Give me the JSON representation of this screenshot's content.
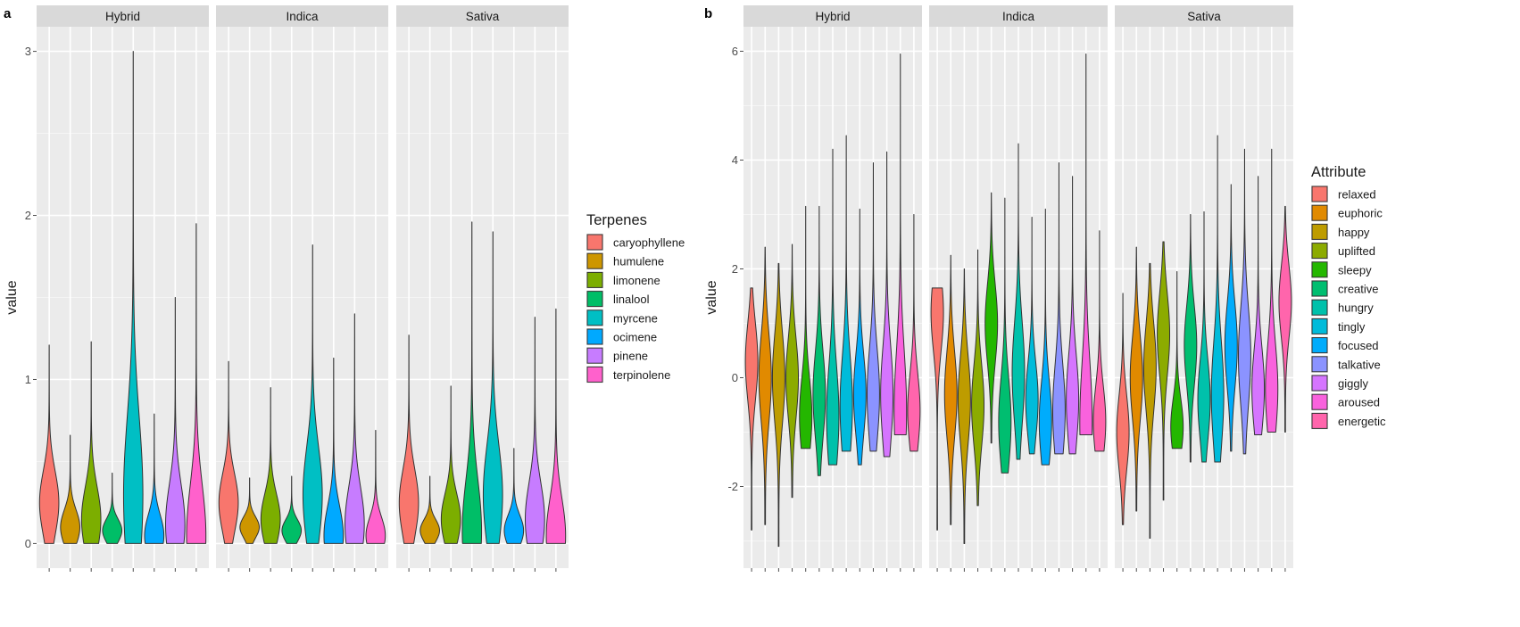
{
  "colors": {
    "panel_bg": "#ebebeb",
    "strip_bg": "#d9d9d9",
    "grid_major": "#ffffff",
    "grid_minor": "#f5f5f5",
    "outline": "#333333",
    "text": "#1a1a1a",
    "tick_text": "#4d4d4d"
  },
  "chart_data": [
    {
      "panel_label": "a",
      "type": "violin",
      "facets": [
        "Hybrid",
        "Indica",
        "Sativa"
      ],
      "ylabel": "value",
      "xlabel": "",
      "ylim": [
        -0.15,
        3.15
      ],
      "y_ticks": [
        0,
        1,
        2,
        3
      ],
      "grid": true,
      "legend_title": "Terpenes",
      "legend_position": "right",
      "categories": [
        "caryophyllene",
        "humulene",
        "limonene",
        "linalool",
        "myrcene",
        "ocimene",
        "pinene",
        "terpinolene"
      ],
      "colors": [
        "#F8766D",
        "#CD9600",
        "#7CAE00",
        "#00BE67",
        "#00BFC4",
        "#00A9FF",
        "#C77CFF",
        "#FF61CC"
      ],
      "series": [
        {
          "name": "Hybrid",
          "min": [
            0,
            0,
            0,
            0,
            0,
            0,
            0,
            0
          ],
          "max": [
            1.21,
            0.66,
            1.23,
            0.43,
            3.0,
            0.79,
            1.5,
            1.95
          ],
          "peak": [
            0.25,
            0.1,
            0.15,
            0.08,
            0.3,
            0.05,
            0.12,
            0.05
          ]
        },
        {
          "name": "Indica",
          "min": [
            0,
            0,
            0,
            0,
            0,
            0,
            0,
            0
          ],
          "max": [
            1.11,
            0.4,
            0.95,
            0.41,
            1.82,
            1.13,
            1.4,
            0.69
          ],
          "peak": [
            0.25,
            0.1,
            0.15,
            0.08,
            0.3,
            0.05,
            0.12,
            0.05
          ]
        },
        {
          "name": "Sativa",
          "min": [
            0,
            0,
            0,
            0,
            0,
            0,
            0,
            0
          ],
          "max": [
            1.27,
            0.41,
            0.96,
            1.96,
            1.9,
            0.58,
            1.38,
            1.43
          ],
          "peak": [
            0.25,
            0.08,
            0.15,
            0.08,
            0.3,
            0.08,
            0.15,
            0.05
          ]
        }
      ]
    },
    {
      "panel_label": "b",
      "type": "violin",
      "facets": [
        "Hybrid",
        "Indica",
        "Sativa"
      ],
      "ylabel": "value",
      "xlabel": "",
      "ylim": [
        -3.5,
        6.45
      ],
      "y_ticks": [
        -2,
        0,
        2,
        4,
        6
      ],
      "grid": true,
      "legend_title": "Attribute",
      "legend_position": "right",
      "categories": [
        "relaxed",
        "euphoric",
        "happy",
        "uplifted",
        "sleepy",
        "creative",
        "hungry",
        "tingly",
        "focused",
        "talkative",
        "giggly",
        "aroused",
        "energetic"
      ],
      "colors": [
        "#F8766D",
        "#E18A00",
        "#BE9C00",
        "#8CAB00",
        "#24B700",
        "#00BE70",
        "#00C1AB",
        "#00BBDA",
        "#00ACFC",
        "#8B93FF",
        "#D575FE",
        "#F962DD",
        "#FF65AC"
      ],
      "series": [
        {
          "name": "Hybrid",
          "min": [
            -2.8,
            -2.7,
            -3.1,
            -2.2,
            -1.3,
            -1.8,
            -1.6,
            -1.35,
            -1.6,
            -1.35,
            -1.45,
            -1.05,
            -1.35
          ],
          "max": [
            1.65,
            2.4,
            2.1,
            2.45,
            3.15,
            3.15,
            4.2,
            4.45,
            3.1,
            3.95,
            4.15,
            5.95,
            3.0
          ],
          "peak": [
            0.3,
            0.0,
            0.0,
            0.0,
            -0.7,
            -0.3,
            -0.7,
            -0.5,
            -0.3,
            -0.3,
            -0.3,
            -0.6,
            -0.6
          ]
        },
        {
          "name": "Indica",
          "min": [
            -2.8,
            -2.7,
            -3.05,
            -2.35,
            -1.2,
            -1.75,
            -1.5,
            -1.4,
            -1.6,
            -1.4,
            -1.4,
            -1.05,
            -1.35
          ],
          "max": [
            1.65,
            2.25,
            2.0,
            2.35,
            3.4,
            3.3,
            4.3,
            2.95,
            3.1,
            3.95,
            3.7,
            5.95,
            2.7
          ],
          "peak": [
            1.2,
            -0.3,
            -0.4,
            -0.5,
            1.0,
            -0.8,
            0.1,
            -0.4,
            -0.8,
            -0.6,
            -0.4,
            -0.8,
            -0.8
          ]
        },
        {
          "name": "Sativa",
          "min": [
            -2.7,
            -2.45,
            -2.95,
            -2.25,
            -1.3,
            -1.55,
            -1.55,
            -1.55,
            -1.35,
            -1.4,
            -1.05,
            -1.0,
            -1.0
          ],
          "max": [
            1.55,
            2.4,
            2.1,
            2.5,
            1.95,
            3.0,
            3.05,
            4.45,
            3.55,
            4.2,
            3.7,
            4.2,
            3.15
          ],
          "peak": [
            -1.0,
            0.0,
            0.2,
            0.8,
            -0.9,
            0.6,
            -0.4,
            -0.3,
            0.6,
            0.4,
            -0.2,
            -0.2,
            1.4
          ]
        }
      ]
    }
  ]
}
